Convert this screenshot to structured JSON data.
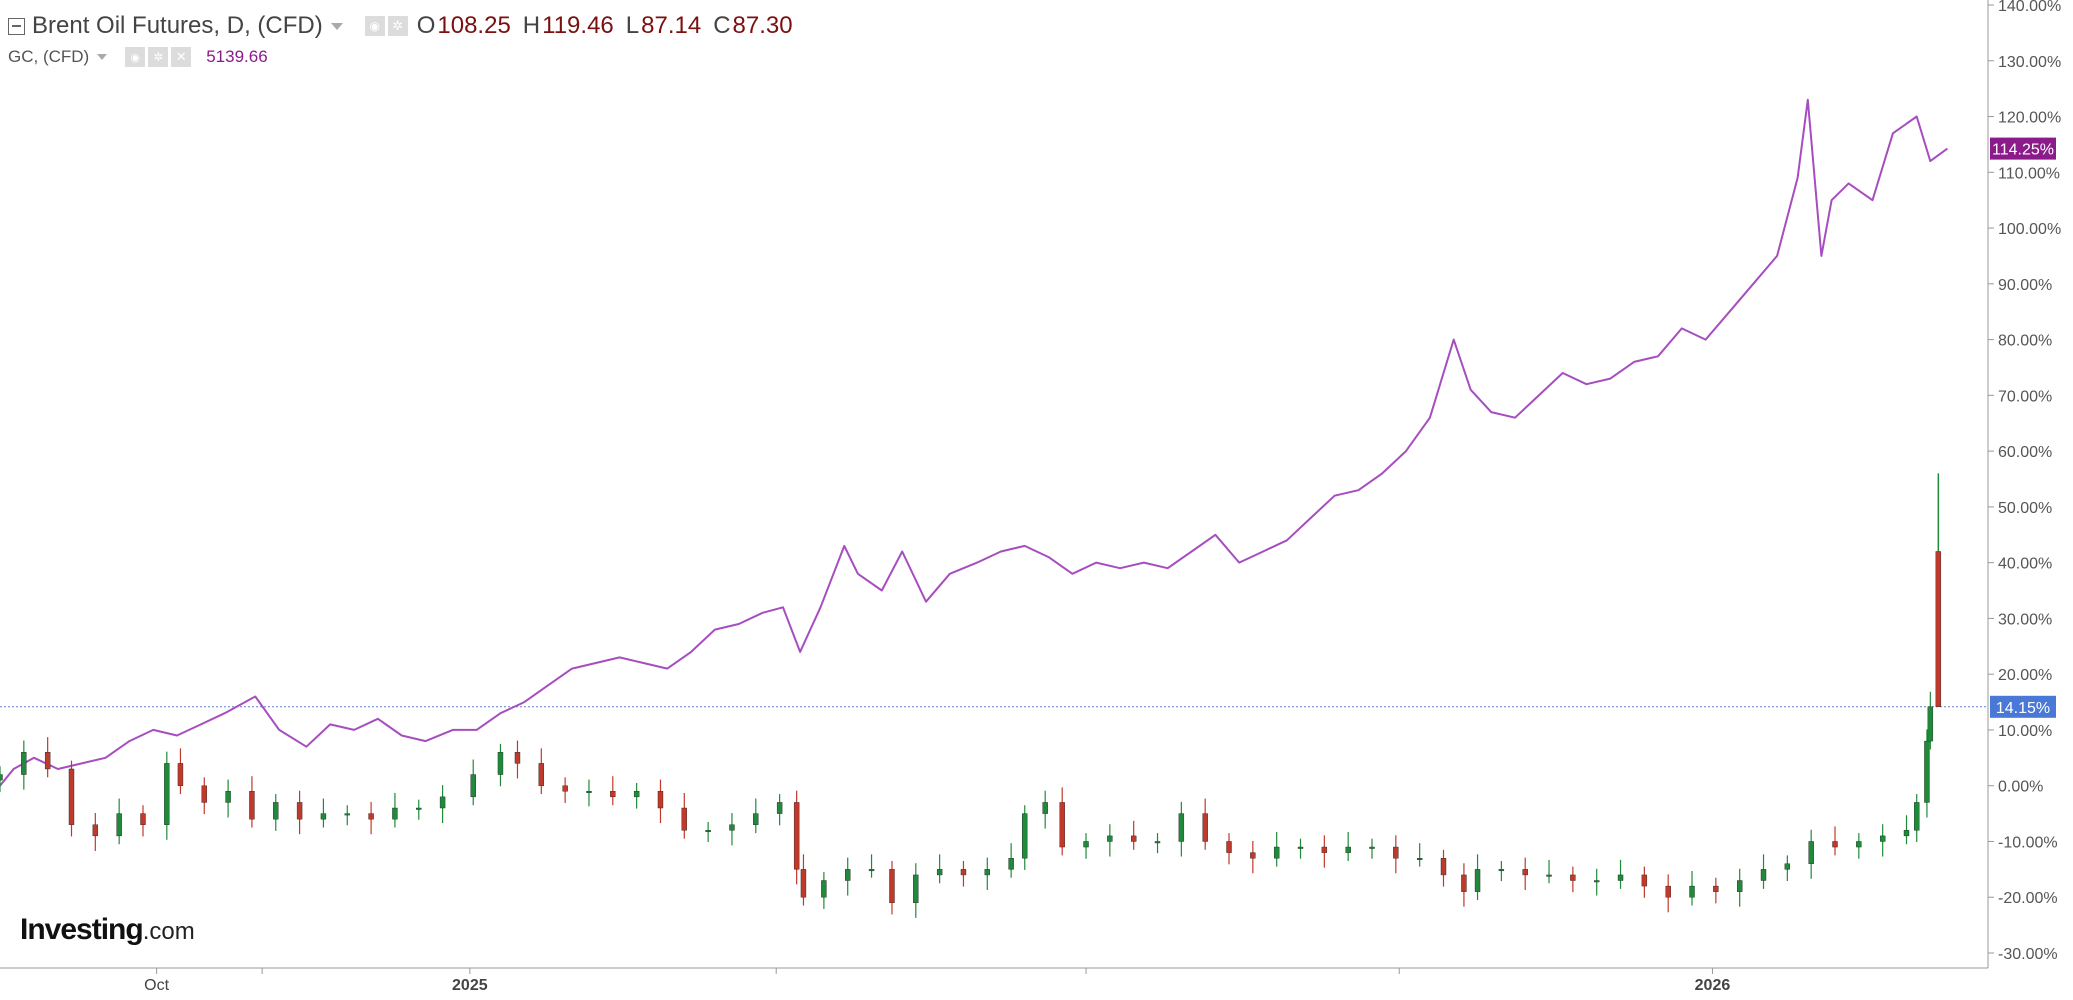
{
  "header": {
    "title": "Brent Oil Futures, D, (CFD)",
    "ohlc": [
      {
        "key": "O",
        "value": "108.25"
      },
      {
        "key": "H",
        "value": "119.46"
      },
      {
        "key": "L",
        "value": "87.14"
      },
      {
        "key": "C",
        "value": "87.30"
      }
    ],
    "gc_label": "GC, (CFD)",
    "gc_value": "5139.66"
  },
  "logo": {
    "text": "Investing",
    "domain": ".com"
  },
  "colors": {
    "gold_line": "#a64dbf",
    "gold_badge": "#8b1a8b",
    "brent_badge": "#4a78d6",
    "up_candle": "#1f8b3a",
    "down_candle": "#c0392b",
    "axis": "#999999",
    "ref_line": "#5b7fd6"
  },
  "chart_data": {
    "type": "line",
    "title": "",
    "xlabel": "",
    "ylabel": "",
    "ylim": [
      -30,
      140
    ],
    "y_ticks": [
      "-30.00%",
      "-20.00%",
      "-10.00%",
      "0.00%",
      "10.00%",
      "20.00%",
      "30.00%",
      "40.00%",
      "50.00%",
      "60.00%",
      "70.00%",
      "80.00%",
      "90.00%",
      "100.00%",
      "110.00%",
      "120.00%",
      "130.00%",
      "140.00%"
    ],
    "x_tick_labels": [
      {
        "date": "2024-10-01",
        "label": "Oct"
      },
      {
        "date": "2025-01-01",
        "label": "2025"
      },
      {
        "date": "2026-01-01",
        "label": "2026"
      }
    ],
    "x_separators": [
      "2024-11-01",
      "2025-04-01",
      "2025-07-01",
      "2025-10-01"
    ],
    "x_range": [
      "2024-08-16",
      "2026-03-20"
    ],
    "grid": false,
    "reference_line": {
      "value": 14.15,
      "label": "14.15%"
    },
    "series": [
      {
        "name": "GC, (CFD)",
        "kind": "line",
        "last_label": "114.25%",
        "points": [
          [
            "2024-08-16",
            0
          ],
          [
            "2024-08-20",
            3
          ],
          [
            "2024-08-26",
            5
          ],
          [
            "2024-09-02",
            3
          ],
          [
            "2024-09-09",
            4
          ],
          [
            "2024-09-16",
            5
          ],
          [
            "2024-09-23",
            8
          ],
          [
            "2024-09-30",
            10
          ],
          [
            "2024-10-07",
            9
          ],
          [
            "2024-10-14",
            11
          ],
          [
            "2024-10-21",
            13
          ],
          [
            "2024-10-30",
            16
          ],
          [
            "2024-11-06",
            10
          ],
          [
            "2024-11-14",
            7
          ],
          [
            "2024-11-21",
            11
          ],
          [
            "2024-11-28",
            10
          ],
          [
            "2024-12-05",
            12
          ],
          [
            "2024-12-12",
            9
          ],
          [
            "2024-12-19",
            8
          ],
          [
            "2024-12-27",
            10
          ],
          [
            "2025-01-03",
            10
          ],
          [
            "2025-01-10",
            13
          ],
          [
            "2025-01-17",
            15
          ],
          [
            "2025-01-24",
            18
          ],
          [
            "2025-01-31",
            21
          ],
          [
            "2025-02-07",
            22
          ],
          [
            "2025-02-14",
            23
          ],
          [
            "2025-02-21",
            22
          ],
          [
            "2025-02-28",
            21
          ],
          [
            "2025-03-07",
            24
          ],
          [
            "2025-03-14",
            28
          ],
          [
            "2025-03-21",
            29
          ],
          [
            "2025-03-28",
            31
          ],
          [
            "2025-04-03",
            32
          ],
          [
            "2025-04-08",
            24
          ],
          [
            "2025-04-14",
            32
          ],
          [
            "2025-04-21",
            43
          ],
          [
            "2025-04-25",
            38
          ],
          [
            "2025-05-02",
            35
          ],
          [
            "2025-05-08",
            42
          ],
          [
            "2025-05-15",
            33
          ],
          [
            "2025-05-22",
            38
          ],
          [
            "2025-05-30",
            40
          ],
          [
            "2025-06-06",
            42
          ],
          [
            "2025-06-13",
            43
          ],
          [
            "2025-06-20",
            41
          ],
          [
            "2025-06-27",
            38
          ],
          [
            "2025-07-04",
            40
          ],
          [
            "2025-07-11",
            39
          ],
          [
            "2025-07-18",
            40
          ],
          [
            "2025-07-25",
            39
          ],
          [
            "2025-08-01",
            42
          ],
          [
            "2025-08-08",
            45
          ],
          [
            "2025-08-15",
            40
          ],
          [
            "2025-08-22",
            42
          ],
          [
            "2025-08-29",
            44
          ],
          [
            "2025-09-05",
            48
          ],
          [
            "2025-09-12",
            52
          ],
          [
            "2025-09-19",
            53
          ],
          [
            "2025-09-26",
            56
          ],
          [
            "2025-10-03",
            60
          ],
          [
            "2025-10-10",
            66
          ],
          [
            "2025-10-17",
            80
          ],
          [
            "2025-10-22",
            71
          ],
          [
            "2025-10-28",
            67
          ],
          [
            "2025-11-04",
            66
          ],
          [
            "2025-11-11",
            70
          ],
          [
            "2025-11-18",
            74
          ],
          [
            "2025-11-25",
            72
          ],
          [
            "2025-12-02",
            73
          ],
          [
            "2025-12-09",
            76
          ],
          [
            "2025-12-16",
            77
          ],
          [
            "2025-12-23",
            82
          ],
          [
            "2025-12-30",
            80
          ],
          [
            "2026-01-06",
            85
          ],
          [
            "2026-01-13",
            90
          ],
          [
            "2026-01-20",
            95
          ],
          [
            "2026-01-26",
            109
          ],
          [
            "2026-01-29",
            123
          ],
          [
            "2026-02-02",
            95
          ],
          [
            "2026-02-05",
            105
          ],
          [
            "2026-02-10",
            108
          ],
          [
            "2026-02-17",
            105
          ],
          [
            "2026-02-23",
            117
          ],
          [
            "2026-03-02",
            120
          ],
          [
            "2026-03-06",
            112
          ],
          [
            "2026-03-11",
            114.25
          ]
        ]
      },
      {
        "name": "Brent Oil Futures, D, (CFD)",
        "kind": "candlestick",
        "last_label": "14.15%",
        "points": [
          [
            "2024-08-16",
            2
          ],
          [
            "2024-08-23",
            6
          ],
          [
            "2024-08-30",
            3
          ],
          [
            "2024-09-06",
            -7
          ],
          [
            "2024-09-13",
            -9
          ],
          [
            "2024-09-20",
            -5
          ],
          [
            "2024-09-27",
            -7
          ],
          [
            "2024-10-04",
            4
          ],
          [
            "2024-10-08",
            0
          ],
          [
            "2024-10-15",
            -3
          ],
          [
            "2024-10-22",
            -1
          ],
          [
            "2024-10-29",
            -6
          ],
          [
            "2024-11-05",
            -3
          ],
          [
            "2024-11-12",
            -6
          ],
          [
            "2024-11-19",
            -5
          ],
          [
            "2024-11-26",
            -5
          ],
          [
            "2024-12-03",
            -6
          ],
          [
            "2024-12-10",
            -4
          ],
          [
            "2024-12-17",
            -4
          ],
          [
            "2024-12-24",
            -2
          ],
          [
            "2025-01-02",
            2
          ],
          [
            "2025-01-10",
            6
          ],
          [
            "2025-01-15",
            4
          ],
          [
            "2025-01-22",
            0
          ],
          [
            "2025-01-29",
            -1
          ],
          [
            "2025-02-05",
            -1
          ],
          [
            "2025-02-12",
            -2
          ],
          [
            "2025-02-19",
            -1
          ],
          [
            "2025-02-26",
            -4
          ],
          [
            "2025-03-05",
            -8
          ],
          [
            "2025-03-12",
            -8
          ],
          [
            "2025-03-19",
            -7
          ],
          [
            "2025-03-26",
            -5
          ],
          [
            "2025-04-02",
            -3
          ],
          [
            "2025-04-07",
            -15
          ],
          [
            "2025-04-09",
            -20
          ],
          [
            "2025-04-15",
            -17
          ],
          [
            "2025-04-22",
            -15
          ],
          [
            "2025-04-29",
            -15
          ],
          [
            "2025-05-05",
            -21
          ],
          [
            "2025-05-12",
            -16
          ],
          [
            "2025-05-19",
            -15
          ],
          [
            "2025-05-26",
            -16
          ],
          [
            "2025-06-02",
            -15
          ],
          [
            "2025-06-09",
            -13
          ],
          [
            "2025-06-13",
            -5
          ],
          [
            "2025-06-19",
            -3
          ],
          [
            "2025-06-24",
            -11
          ],
          [
            "2025-07-01",
            -10
          ],
          [
            "2025-07-08",
            -9
          ],
          [
            "2025-07-15",
            -10
          ],
          [
            "2025-07-22",
            -10
          ],
          [
            "2025-07-29",
            -5
          ],
          [
            "2025-08-05",
            -10
          ],
          [
            "2025-08-12",
            -12
          ],
          [
            "2025-08-19",
            -13
          ],
          [
            "2025-08-26",
            -11
          ],
          [
            "2025-09-02",
            -11
          ],
          [
            "2025-09-09",
            -12
          ],
          [
            "2025-09-16",
            -11
          ],
          [
            "2025-09-23",
            -11
          ],
          [
            "2025-09-30",
            -13
          ],
          [
            "2025-10-07",
            -13
          ],
          [
            "2025-10-14",
            -16
          ],
          [
            "2025-10-20",
            -19
          ],
          [
            "2025-10-24",
            -15
          ],
          [
            "2025-10-31",
            -15
          ],
          [
            "2025-11-07",
            -16
          ],
          [
            "2025-11-14",
            -16
          ],
          [
            "2025-11-21",
            -17
          ],
          [
            "2025-11-28",
            -17
          ],
          [
            "2025-12-05",
            -16
          ],
          [
            "2025-12-12",
            -18
          ],
          [
            "2025-12-19",
            -20
          ],
          [
            "2025-12-26",
            -18
          ],
          [
            "2026-01-02",
            -19
          ],
          [
            "2026-01-09",
            -17
          ],
          [
            "2026-01-16",
            -15
          ],
          [
            "2026-01-23",
            -14
          ],
          [
            "2026-01-30",
            -10
          ],
          [
            "2026-02-06",
            -11
          ],
          [
            "2026-02-13",
            -10
          ],
          [
            "2026-02-20",
            -9
          ],
          [
            "2026-02-27",
            -8
          ],
          [
            "2026-03-02",
            -3
          ],
          [
            "2026-03-05",
            8
          ],
          [
            "2026-03-06",
            14.15
          ]
        ]
      }
    ]
  }
}
